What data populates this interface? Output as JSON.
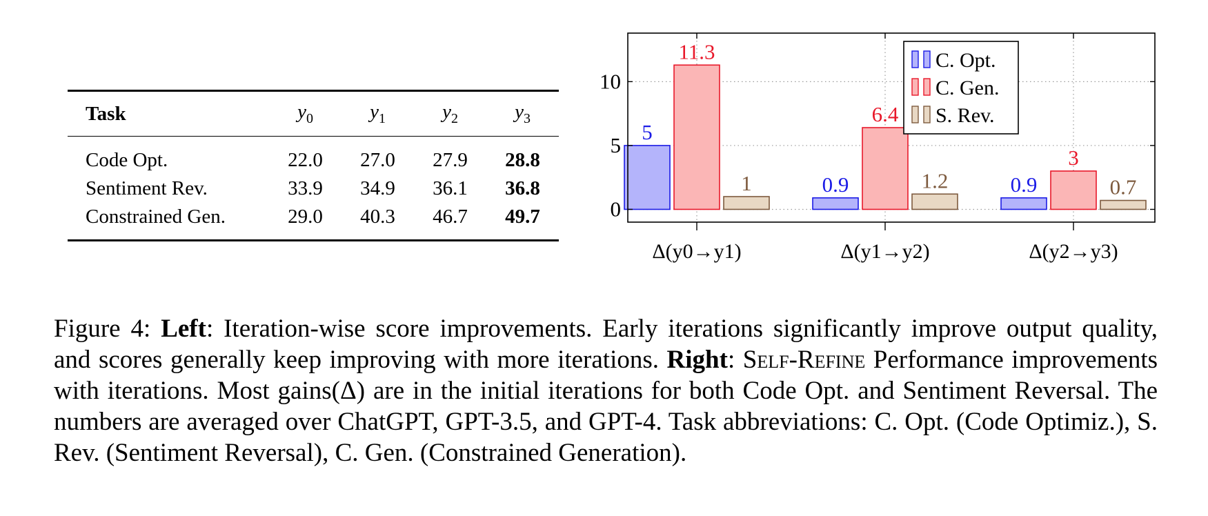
{
  "table": {
    "header": {
      "task": "Task",
      "cols": [
        "0",
        "1",
        "2",
        "3"
      ]
    },
    "rows": [
      {
        "task": "Code Opt.",
        "y0": "22.0",
        "y1": "27.0",
        "y2": "27.9",
        "y3": "28.8"
      },
      {
        "task": "Sentiment Rev.",
        "y0": "33.9",
        "y1": "34.9",
        "y2": "36.1",
        "y3": "36.8"
      },
      {
        "task": "Constrained Gen.",
        "y0": "29.0",
        "y1": "40.3",
        "y2": "46.7",
        "y3": "49.7"
      }
    ]
  },
  "chart_data": {
    "type": "bar",
    "categories": [
      "Δ(y0→y1)",
      "Δ(y1→y2)",
      "Δ(y2→y3)"
    ],
    "series": [
      {
        "name": "C. Opt.",
        "values": [
          5,
          0.9,
          0.9
        ],
        "labels": [
          "5",
          "0.9",
          "0.9"
        ],
        "color": "#b4b4fb",
        "stroke": "#1b1be6",
        "label_color": "#1b1be6"
      },
      {
        "name": "C. Gen.",
        "values": [
          11.3,
          6.4,
          3
        ],
        "labels": [
          "11.3",
          "6.4",
          "3"
        ],
        "color": "#fbb6b6",
        "stroke": "#e8182a",
        "label_color": "#e8182a"
      },
      {
        "name": "S. Rev.",
        "values": [
          1,
          1.2,
          0.7
        ],
        "labels": [
          "1",
          "1.2",
          "0.7"
        ],
        "color": "#e8d8c4",
        "stroke": "#7d5a3e",
        "label_color": "#7d5a3e"
      }
    ],
    "yticks": [
      "0",
      "5",
      "10"
    ],
    "ylim": [
      -1,
      13.8
    ],
    "legend": "top-right",
    "grid": "dotted"
  },
  "caption": {
    "lead": "Figure 4: ",
    "left_label": "Left",
    "left_text": ": Iteration-wise score improvements. Early iterations significantly improve output quality, and scores generally keep improving with more iterations. ",
    "right_label": "Right",
    "colon": ": ",
    "method": "Self-Refine",
    "right_text": " Performance improvements with iterations. Most gains(Δ) are in the initial iterations for both Code Opt. and Sentiment Reversal. The numbers are averaged over ChatGPT, GPT-3.5, and GPT-4. Task abbreviations: C. Opt. (Code Optimiz.), S. Rev. (Sentiment Reversal), C. Gen. (Constrained Generation)."
  }
}
